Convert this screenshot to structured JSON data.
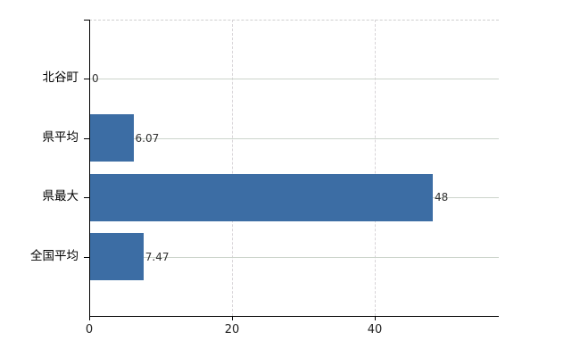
{
  "chart_data": {
    "type": "bar",
    "orientation": "horizontal",
    "title": "",
    "categories": [
      "北谷町",
      "県平均",
      "県最大",
      "全国平均"
    ],
    "values": [
      0,
      6.07,
      48,
      7.47
    ],
    "value_labels": [
      "0",
      "6.07",
      "48",
      "7.47"
    ],
    "x_ticks": [
      0,
      20,
      40
    ],
    "x_tick_labels": [
      "0",
      "20",
      "40"
    ],
    "xlim": [
      0,
      57.4
    ],
    "grid": true,
    "legend": null,
    "colors": {
      "bar": "#3c6da4",
      "axis": "#000000",
      "grid_horizontal": "#ccd4cb",
      "grid_vertical": "#d8d4d8",
      "plot_top_border": "#cfcfcf",
      "value_label": "#333333",
      "tick_label": "#222222",
      "category_label": "#000000",
      "background": "#ffffff"
    }
  }
}
